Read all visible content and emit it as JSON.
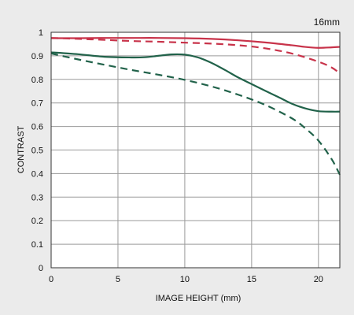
{
  "chart_data": {
    "type": "line",
    "title": "16mm",
    "xlabel": "IMAGE HEIGHT (mm)",
    "ylabel": "CONTRAST",
    "xlim": [
      0,
      21.6
    ],
    "ylim": [
      0,
      1
    ],
    "x_ticks": [
      "0",
      "5",
      "10",
      "15",
      "20"
    ],
    "y_ticks": [
      "0",
      "0.1",
      "0.2",
      "0.3",
      "0.4",
      "0.5",
      "0.6",
      "0.7",
      "0.8",
      "0.9",
      "1"
    ],
    "grid": true,
    "legend": "none",
    "series": [
      {
        "color": "#c8334a",
        "dash": "solid",
        "points": [
          [
            0,
            0.975
          ],
          [
            2,
            0.975
          ],
          [
            4,
            0.976
          ],
          [
            6,
            0.976
          ],
          [
            8,
            0.976
          ],
          [
            10,
            0.975
          ],
          [
            12,
            0.972
          ],
          [
            14,
            0.966
          ],
          [
            16,
            0.957
          ],
          [
            18,
            0.945
          ],
          [
            19,
            0.938
          ],
          [
            20,
            0.934
          ],
          [
            21,
            0.936
          ],
          [
            21.6,
            0.938
          ]
        ]
      },
      {
        "color": "#c8334a",
        "dash": "dashed",
        "points": [
          [
            0,
            0.976
          ],
          [
            3,
            0.97
          ],
          [
            6,
            0.963
          ],
          [
            8,
            0.96
          ],
          [
            10,
            0.956
          ],
          [
            12,
            0.952
          ],
          [
            14,
            0.945
          ],
          [
            16,
            0.932
          ],
          [
            18,
            0.91
          ],
          [
            20,
            0.875
          ],
          [
            21,
            0.85
          ],
          [
            21.6,
            0.825
          ]
        ]
      },
      {
        "color": "#21624a",
        "dash": "solid",
        "points": [
          [
            0,
            0.915
          ],
          [
            2,
            0.907
          ],
          [
            4,
            0.896
          ],
          [
            6,
            0.893
          ],
          [
            7,
            0.894
          ],
          [
            8,
            0.9
          ],
          [
            9,
            0.906
          ],
          [
            10,
            0.905
          ],
          [
            11,
            0.893
          ],
          [
            12,
            0.87
          ],
          [
            13,
            0.84
          ],
          [
            14,
            0.808
          ],
          [
            15,
            0.78
          ],
          [
            16,
            0.752
          ],
          [
            17,
            0.725
          ],
          [
            18,
            0.697
          ],
          [
            19,
            0.677
          ],
          [
            20,
            0.665
          ],
          [
            21,
            0.663
          ],
          [
            21.6,
            0.663
          ]
        ]
      },
      {
        "color": "#21624a",
        "dash": "dashed",
        "points": [
          [
            0,
            0.91
          ],
          [
            2,
            0.885
          ],
          [
            4,
            0.862
          ],
          [
            6,
            0.84
          ],
          [
            8,
            0.82
          ],
          [
            10,
            0.798
          ],
          [
            12,
            0.77
          ],
          [
            14,
            0.735
          ],
          [
            16,
            0.692
          ],
          [
            18,
            0.635
          ],
          [
            19,
            0.593
          ],
          [
            20,
            0.54
          ],
          [
            21,
            0.46
          ],
          [
            21.6,
            0.395
          ]
        ]
      }
    ]
  }
}
